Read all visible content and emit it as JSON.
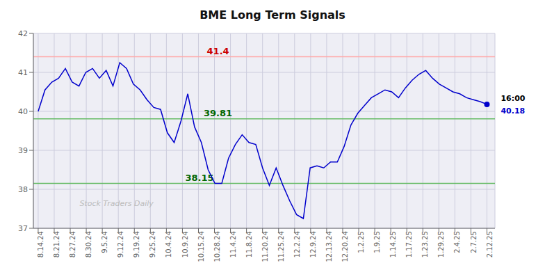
{
  "chart_data": {
    "type": "line",
    "title": "BME Long Term Signals",
    "x": [
      0,
      0.4242,
      0.8485,
      1.2727,
      1.697,
      2.1212,
      2.5455,
      2.9697,
      3.3939,
      3.8182,
      4.2424,
      4.6667,
      5.0909,
      5.5152,
      5.9394,
      6.3636,
      6.7879,
      7.2121,
      7.6364,
      8.0606,
      8.4848,
      8.9091,
      9.3333,
      9.7576,
      10.1818,
      10.6061,
      11.0303,
      11.4545,
      11.8788,
      12.303,
      12.7273,
      13.1515,
      13.5758,
      14,
      14.4242,
      14.8485,
      15.2727,
      15.697,
      16.1212,
      16.5455,
      16.9697,
      17.3939,
      17.8182,
      18.2424,
      18.6667,
      19.0909,
      19.5152,
      19.9394,
      20.3636,
      20.7879,
      21.2121,
      21.6364,
      22.0606,
      22.4848,
      22.9091,
      23.3333,
      23.7576,
      24.1818,
      24.6061,
      25.0303,
      25.4545,
      25.8788,
      26.303,
      26.7273,
      27.1515,
      27.5758,
      28
    ],
    "values": [
      40.0,
      40.55,
      40.75,
      40.85,
      41.1,
      40.75,
      40.65,
      41.0,
      41.1,
      40.85,
      41.05,
      40.65,
      41.25,
      41.1,
      40.7,
      40.55,
      40.3,
      40.1,
      40.05,
      39.45,
      39.2,
      39.75,
      40.45,
      39.6,
      39.2,
      38.5,
      38.15,
      38.15,
      38.8,
      39.15,
      39.4,
      39.2,
      39.15,
      38.55,
      38.1,
      38.55,
      38.1,
      37.7,
      37.35,
      37.25,
      38.55,
      38.6,
      38.55,
      38.7,
      38.7,
      39.1,
      39.65,
      39.95,
      40.15,
      40.35,
      40.45,
      40.55,
      40.5,
      40.35,
      40.6,
      40.8,
      40.95,
      41.05,
      40.85,
      40.7,
      40.6,
      40.5,
      40.45,
      40.35,
      40.3,
      40.25,
      40.18
    ],
    "color": "#0000cc",
    "xlim": [
      -0.3,
      28.5
    ],
    "xticks": [
      {
        "value": 0,
        "label": "8.14.24"
      },
      {
        "value": 1,
        "label": "8.21.24"
      },
      {
        "value": 2,
        "label": "8.27.24"
      },
      {
        "value": 3,
        "label": "8.30.24"
      },
      {
        "value": 4,
        "label": "9.5.24"
      },
      {
        "value": 5,
        "label": "9.12.24"
      },
      {
        "value": 6,
        "label": "9.19.24"
      },
      {
        "value": 7,
        "label": "9.25.24"
      },
      {
        "value": 8,
        "label": "10.4.24"
      },
      {
        "value": 9,
        "label": "10.9.24"
      },
      {
        "value": 10,
        "label": "10.15.24"
      },
      {
        "value": 11,
        "label": "10.28.24"
      },
      {
        "value": 12,
        "label": "11.4.24"
      },
      {
        "value": 13,
        "label": "11.8.24"
      },
      {
        "value": 14,
        "label": "11.20.24"
      },
      {
        "value": 15,
        "label": "11.25.24"
      },
      {
        "value": 16,
        "label": "12.2.24"
      },
      {
        "value": 17,
        "label": "12.9.24"
      },
      {
        "value": 18,
        "label": "12.13.24"
      },
      {
        "value": 19,
        "label": "12.20.24"
      },
      {
        "value": 20,
        "label": "1.2.25"
      },
      {
        "value": 21,
        "label": "1.9.25"
      },
      {
        "value": 22,
        "label": "1.14.25"
      },
      {
        "value": 23,
        "label": "1.17.25"
      },
      {
        "value": 24,
        "label": "1.23.25"
      },
      {
        "value": 25,
        "label": "1.29.25"
      },
      {
        "value": 26,
        "label": "2.4.25"
      },
      {
        "value": 27,
        "label": "2.7.25"
      },
      {
        "value": 28,
        "label": "2.12.25"
      }
    ],
    "ylim": [
      37,
      42
    ],
    "yticks": [
      37,
      38,
      39,
      40,
      41,
      42
    ],
    "grid": true,
    "reference_lines": [
      {
        "value": 41.4,
        "color": "#ffaaaa",
        "label_color": "#cc0000"
      },
      {
        "value": 39.81,
        "color": "#66bb66",
        "label_color": "#006600"
      },
      {
        "value": 38.15,
        "color": "#66bb66",
        "label_color": "#006600"
      }
    ],
    "annotations": [
      {
        "text": "16:00",
        "color": "#000000"
      },
      {
        "text": "40.18",
        "color": "#0000cc"
      }
    ],
    "watermark": "Stock Traders Daily"
  }
}
